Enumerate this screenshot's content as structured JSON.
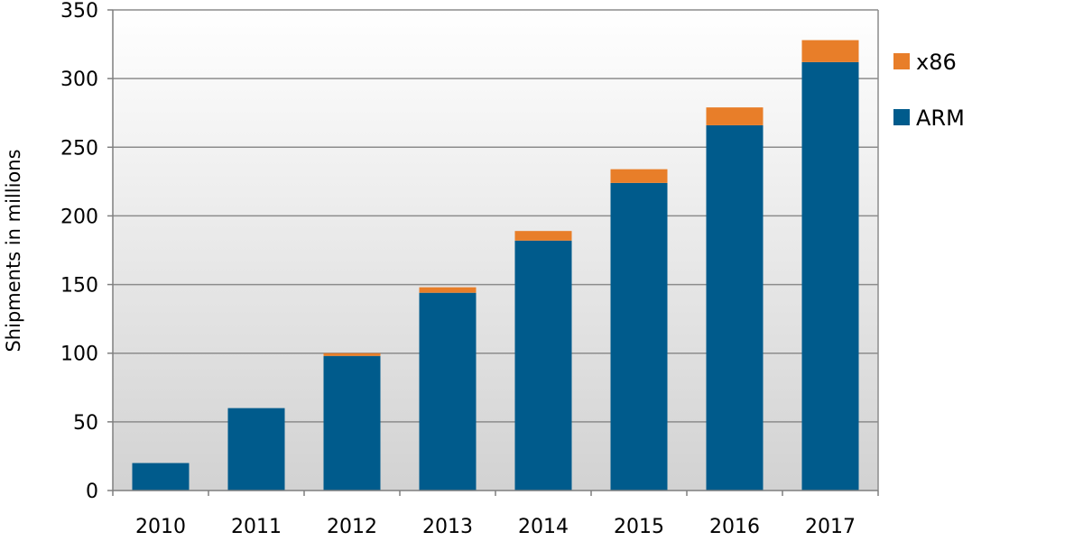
{
  "chart_data": {
    "type": "bar",
    "stacked": true,
    "categories": [
      "2010",
      "2011",
      "2012",
      "2013",
      "2014",
      "2015",
      "2016",
      "2017"
    ],
    "series": [
      {
        "name": "ARM",
        "color": "#005b8c",
        "values": [
          20,
          60,
          98,
          144,
          182,
          224,
          266,
          312
        ]
      },
      {
        "name": "x86",
        "color": "#e87e29",
        "values": [
          0,
          0,
          2,
          4,
          7,
          10,
          13,
          16
        ]
      }
    ],
    "ylabel": "Shipments  in millions",
    "xlabel": "",
    "ylim": [
      0,
      350
    ],
    "yticks": [
      0,
      50,
      100,
      150,
      200,
      250,
      300,
      350
    ],
    "grid": true,
    "legend_position": "right",
    "legend_order": [
      "x86",
      "ARM"
    ],
    "background": "gradient white to light gray"
  }
}
